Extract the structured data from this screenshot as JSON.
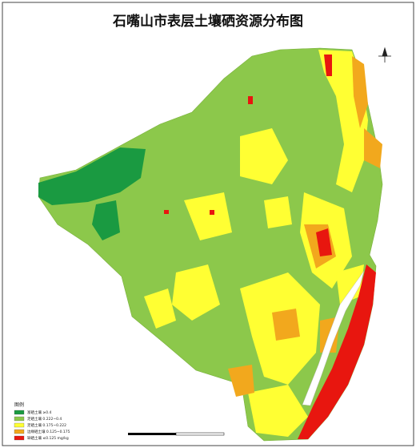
{
  "header": {
    "title": "石嘴山市表层土壤硒资源分布图"
  },
  "legend": {
    "title": "图例",
    "items": [
      {
        "label": "富硒土壤 ≥0.4",
        "color": "#1a9a41"
      },
      {
        "label": "足硒土壤 0.222~0.4",
        "color": "#8cc84b"
      },
      {
        "label": "足硒土壤 0.175~0.222",
        "color": "#ffff33"
      },
      {
        "label": "边缘硒土壤 0.125~0.175",
        "color": "#f2a81d"
      },
      {
        "label": "缺硒土壤 ≤0.125 mg/kg",
        "color": "#e8160f"
      }
    ]
  }
}
